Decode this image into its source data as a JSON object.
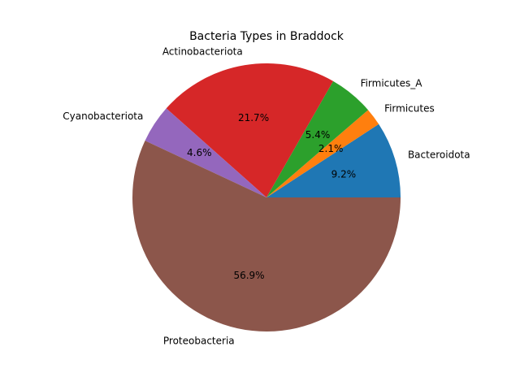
{
  "chart_data": {
    "type": "pie",
    "title": "Bacteria Types in Braddock",
    "slices": [
      {
        "label": "Bacteroidota",
        "value": 9.2,
        "pct_label": "9.2%",
        "color": "#1f77b4"
      },
      {
        "label": "Firmicutes",
        "value": 2.1,
        "pct_label": "2.1%",
        "color": "#ff7f0e"
      },
      {
        "label": "Firmicutes_A",
        "value": 5.4,
        "pct_label": "5.4%",
        "color": "#2ca02c"
      },
      {
        "label": "Actinobacteriota",
        "value": 21.7,
        "pct_label": "21.7%",
        "color": "#d62728"
      },
      {
        "label": "Cyanobacteriota",
        "value": 4.6,
        "pct_label": "4.6%",
        "color": "#9467bd"
      },
      {
        "label": "Proteobacteria",
        "value": 56.9,
        "pct_label": "56.9%",
        "color": "#8c564b"
      }
    ],
    "start_angle_deg": 0,
    "direction": "counterclockwise"
  }
}
